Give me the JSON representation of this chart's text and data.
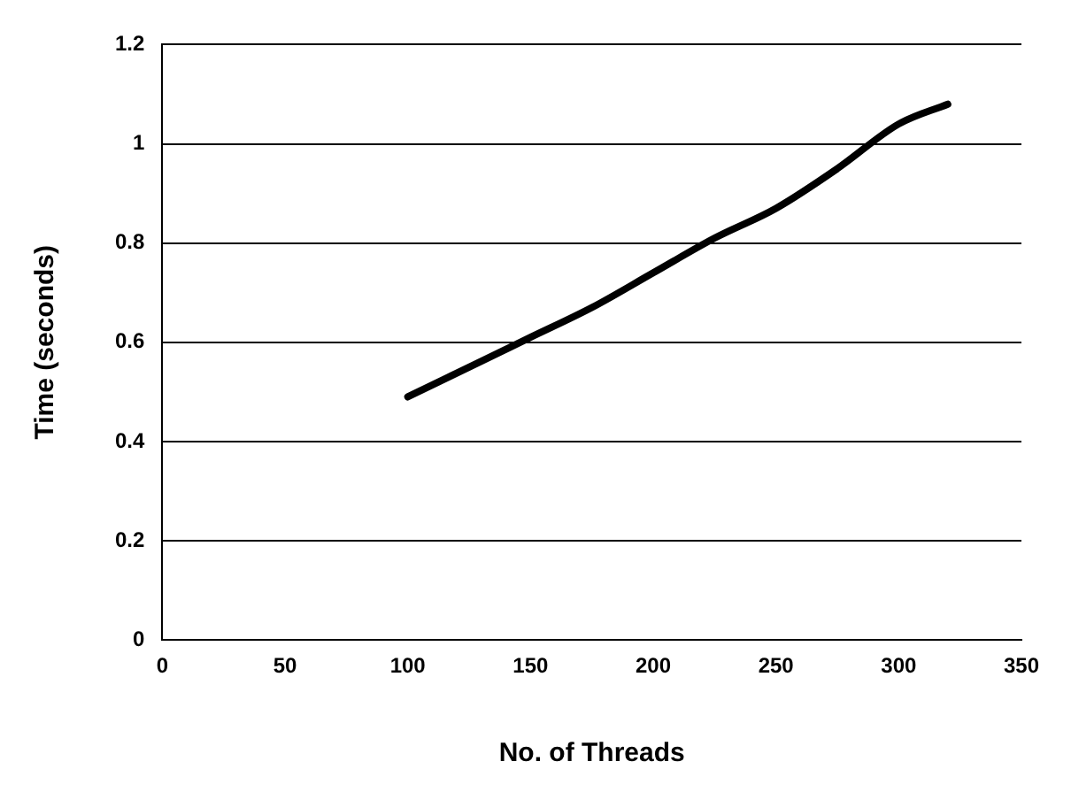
{
  "chart_data": {
    "type": "line",
    "xlabel": "No. of Threads",
    "ylabel": "Time (seconds)",
    "x": [
      100,
      125,
      150,
      175,
      200,
      225,
      250,
      275,
      300,
      320
    ],
    "series": [
      {
        "color": "#000000",
        "values": [
          0.49,
          0.55,
          0.61,
          0.67,
          0.74,
          0.81,
          0.87,
          0.95,
          1.04,
          1.08
        ]
      }
    ],
    "xlim": [
      0,
      350
    ],
    "xticks": [
      0,
      50,
      100,
      150,
      200,
      250,
      300,
      350
    ],
    "ylim": [
      0,
      1.2
    ],
    "yticks": [
      0,
      0.2,
      0.4,
      0.6,
      0.8,
      1,
      1.2
    ],
    "grid": "y",
    "legend": false,
    "marker": "none",
    "line_style": "solid"
  }
}
